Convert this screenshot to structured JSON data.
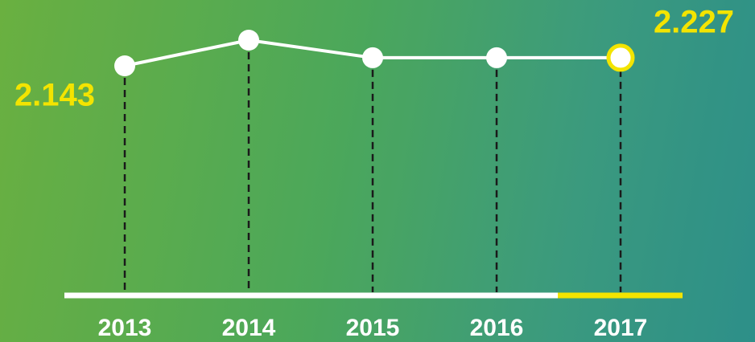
{
  "chart_data": {
    "type": "line",
    "categories": [
      "2013",
      "2014",
      "2015",
      "2016",
      "2017"
    ],
    "values": [
      2.143,
      2.41,
      2.227,
      2.227,
      2.227
    ],
    "color": "#ffffff",
    "highlight_color": "#f3e400"
  }
}
